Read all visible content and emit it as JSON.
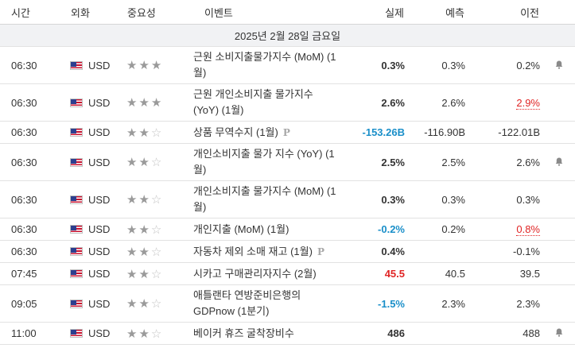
{
  "headers": {
    "time": "시간",
    "currency": "외화",
    "importance": "중요성",
    "event": "이벤트",
    "actual": "실제",
    "forecast": "예측",
    "previous": "이전"
  },
  "date_label": "2025년 2월 28일 금요일",
  "colors": {
    "header_border": "#d6d6d6",
    "date_bg": "#f1f2f4",
    "blue": "#1a8fc9",
    "red": "#e02424"
  },
  "rows": [
    {
      "time": "06:30",
      "currency": "USD",
      "stars": 3,
      "event": "근원 소비지출물가지수 (MoM) (1월)",
      "actual": "0.3%",
      "actual_color": "normal",
      "forecast": "0.3%",
      "previous": "0.2%",
      "previous_revised": false,
      "alert": true,
      "prelim": false
    },
    {
      "time": "06:30",
      "currency": "USD",
      "stars": 3,
      "event": "근원 개인소비지출 물가지수 (YoY) (1월)",
      "actual": "2.6%",
      "actual_color": "normal",
      "forecast": "2.6%",
      "previous": "2.9%",
      "previous_revised": true,
      "alert": false,
      "prelim": false
    },
    {
      "time": "06:30",
      "currency": "USD",
      "stars": 2,
      "event": "상품 무역수지 (1월)",
      "actual": "-153.26B",
      "actual_color": "blue",
      "forecast": "-116.90B",
      "previous": "-122.01B",
      "previous_revised": false,
      "alert": false,
      "prelim": true
    },
    {
      "time": "06:30",
      "currency": "USD",
      "stars": 2,
      "event": "개인소비지출 물가 지수 (YoY) (1월)",
      "actual": "2.5%",
      "actual_color": "normal",
      "forecast": "2.5%",
      "previous": "2.6%",
      "previous_revised": false,
      "alert": true,
      "prelim": false
    },
    {
      "time": "06:30",
      "currency": "USD",
      "stars": 2,
      "event": "개인소비지출 물가지수 (MoM) (1월)",
      "actual": "0.3%",
      "actual_color": "normal",
      "forecast": "0.3%",
      "previous": "0.3%",
      "previous_revised": false,
      "alert": false,
      "prelim": false
    },
    {
      "time": "06:30",
      "currency": "USD",
      "stars": 2,
      "event": "개인지출 (MoM) (1월)",
      "actual": "-0.2%",
      "actual_color": "blue",
      "forecast": "0.2%",
      "previous": "0.8%",
      "previous_revised": true,
      "alert": false,
      "prelim": false
    },
    {
      "time": "06:30",
      "currency": "USD",
      "stars": 2,
      "event": "자동차 제외 소매 재고 (1월)",
      "actual": "0.4%",
      "actual_color": "normal",
      "forecast": "",
      "previous": "-0.1%",
      "previous_revised": false,
      "alert": false,
      "prelim": true
    },
    {
      "time": "07:45",
      "currency": "USD",
      "stars": 2,
      "event": "시카고 구매관리자지수 (2월)",
      "actual": "45.5",
      "actual_color": "red",
      "forecast": "40.5",
      "previous": "39.5",
      "previous_revised": false,
      "alert": false,
      "prelim": false
    },
    {
      "time": "09:05",
      "currency": "USD",
      "stars": 2,
      "event": "애틀랜타 연방준비은행의 GDPnow (1분기)",
      "actual": "-1.5%",
      "actual_color": "blue",
      "forecast": "2.3%",
      "previous": "2.3%",
      "previous_revised": false,
      "alert": false,
      "prelim": false
    },
    {
      "time": "11:00",
      "currency": "USD",
      "stars": 2,
      "event": "베이커 휴즈 굴착장비수",
      "actual": "486",
      "actual_color": "normal",
      "forecast": "",
      "previous": "488",
      "previous_revised": false,
      "alert": true,
      "prelim": false
    }
  ]
}
